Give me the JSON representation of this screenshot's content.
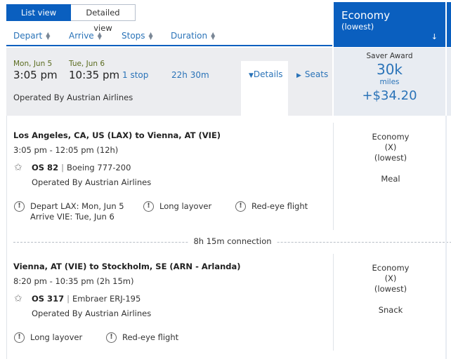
{
  "view_toggle": {
    "list": "List view",
    "detailed": "Detailed view"
  },
  "sort": {
    "depart": "Depart",
    "arrive": "Arrive",
    "stops": "Stops",
    "duration": "Duration"
  },
  "cabin_header": {
    "title": "Economy",
    "subtitle": "(lowest)",
    "arrow": "↓"
  },
  "summary": {
    "depart_date": "Mon, Jun 5",
    "depart_time": "3:05 pm",
    "arrive_date": "Tue, Jun 6",
    "arrive_time": "10:35 pm",
    "stops": "1 stop",
    "duration": "22h 30m",
    "operated_by": "Operated By Austrian Airlines",
    "details_label": "Details",
    "seats_label": "Seats"
  },
  "fare": {
    "label": "Saver Award",
    "miles": "30k",
    "miles_unit": "miles",
    "taxes": "+$34.20"
  },
  "segments": [
    {
      "route": "Los Angeles, CA, US (LAX) to Vienna, AT (VIE)",
      "times": "3:05 pm - 12:05 pm (12h)",
      "flight_number": "OS 82",
      "aircraft": "Boeing 777-200",
      "operated_by": "Operated By Austrian Airlines",
      "warnings": {
        "depart_line1": "Depart LAX: Mon, Jun 5",
        "depart_line2": "Arrive VIE: Tue, Jun 6",
        "long_layover": "Long layover",
        "red_eye": "Red-eye flight"
      },
      "cabin": {
        "class": "Economy",
        "code": "(X)",
        "fare": "(lowest)",
        "meal": "Meal"
      }
    },
    {
      "route": "Vienna, AT (VIE) to Stockholm, SE (ARN - Arlanda)",
      "times": "8:20 pm - 10:35 pm (2h 15m)",
      "flight_number": "OS 317",
      "aircraft": "Embraer ERJ-195",
      "operated_by": "Operated By Austrian Airlines",
      "warnings": {
        "long_layover": "Long layover",
        "red_eye": "Red-eye flight"
      },
      "cabin": {
        "class": "Economy",
        "code": "(X)",
        "fare": "(lowest)",
        "meal": "Snack"
      }
    }
  ],
  "connection": "8h 15m connection",
  "icons": {
    "warning": "!",
    "star": "✩",
    "sort": "sort-icon",
    "caret_down": "caret-down-icon",
    "caret_right": "caret-right-icon"
  },
  "colors": {
    "brand": "#0a5fbf",
    "link": "#2a73b8",
    "summary_bg": "#ecedf0",
    "fare_bg": "#e8ecf2"
  }
}
